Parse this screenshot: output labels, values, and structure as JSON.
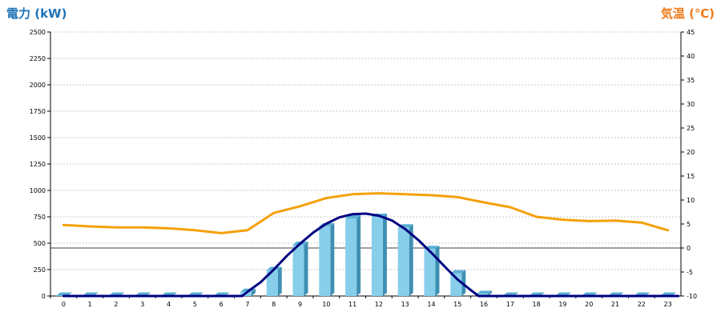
{
  "chart_data": {
    "type": "bar",
    "y_left_label": "電力 (kW)",
    "y_right_label": "気温 (℃)",
    "y_left_lim": [
      0,
      2500
    ],
    "y_left_ticks": [
      "0",
      "250",
      "500",
      "750",
      "1000",
      "1250",
      "1500",
      "1750",
      "2000",
      "2250",
      "2500"
    ],
    "y_right_lim": [
      -10,
      45
    ],
    "y_right_ticks": [
      "-10",
      "-5",
      "0",
      "5",
      "10",
      "15",
      "20",
      "25",
      "30",
      "35",
      "40",
      "45"
    ],
    "categories": [
      "0",
      "1",
      "2",
      "3",
      "4",
      "5",
      "6",
      "7",
      "8",
      "9",
      "10",
      "11",
      "12",
      "13",
      "14",
      "15",
      "16",
      "17",
      "18",
      "19",
      "20",
      "21",
      "22",
      "23"
    ],
    "grid": "horizontal dashed",
    "series": [
      {
        "kind": "bar",
        "axis": "left",
        "color": "#87ceeb",
        "values": [
          0,
          0,
          0,
          0,
          0,
          0,
          0,
          40,
          245,
          485,
          660,
          735,
          750,
          650,
          445,
          215,
          20,
          0,
          0,
          0,
          0,
          0,
          0,
          0
        ]
      },
      {
        "kind": "line",
        "axis": "left",
        "color": "#000080",
        "x": [
          0,
          6.8,
          7,
          7.5,
          8,
          8.5,
          9,
          9.5,
          10,
          10.5,
          11,
          11.5,
          12,
          12.5,
          13,
          13.5,
          14,
          14.5,
          15,
          15.5,
          15.8,
          23.4
        ],
        "values": [
          0,
          0,
          40,
          130,
          250,
          380,
          495,
          600,
          685,
          745,
          775,
          780,
          760,
          715,
          635,
          530,
          410,
          280,
          155,
          55,
          0,
          0
        ]
      },
      {
        "kind": "line",
        "axis": "right",
        "color": "#f5a00a",
        "x": [
          0,
          1,
          2,
          3,
          4,
          5,
          6,
          7,
          8,
          9,
          10,
          11,
          12,
          13,
          14,
          15,
          16,
          17,
          18,
          19,
          20,
          21,
          22,
          23
        ],
        "values": [
          4.8,
          4.5,
          4.3,
          4.3,
          4.1,
          3.7,
          3.1,
          3.7,
          7.3,
          8.7,
          10.4,
          11.2,
          11.4,
          11.2,
          11.0,
          10.6,
          9.5,
          8.5,
          6.5,
          5.9,
          5.6,
          5.7,
          5.3,
          3.7
        ]
      }
    ]
  }
}
